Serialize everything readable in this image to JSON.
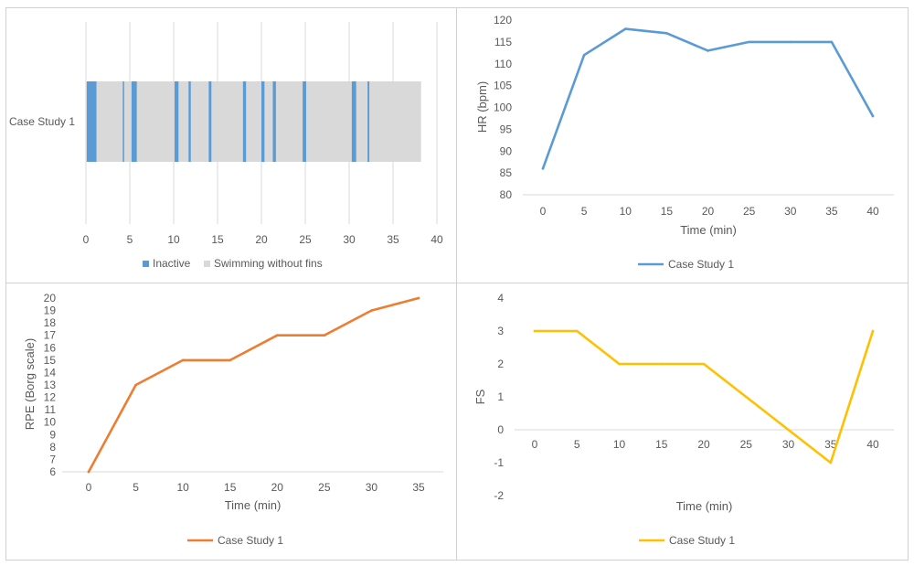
{
  "colors": {
    "inactive": "#5b9bd5",
    "swimming": "#d9d9d9",
    "hr_line": "#5b9bd5",
    "rpe_line": "#ed7d31",
    "fs_line": "#ffc000",
    "grid": "#d9d9d9",
    "border": "#d0d0d0",
    "text": "#595959"
  },
  "chart_data": [
    {
      "type": "bar",
      "subtype": "stacked-horizontal-timeline",
      "categories": [
        "Case Study 1"
      ],
      "xlim": [
        0,
        40
      ],
      "xticks": [
        "0",
        "5",
        "10",
        "15",
        "20",
        "25",
        "30",
        "35",
        "40"
      ],
      "end": 38.2,
      "inactive_segments": [
        [
          0.1,
          1.2
        ],
        [
          4.2,
          4.35
        ],
        [
          5.2,
          5.8
        ],
        [
          10.1,
          10.55
        ],
        [
          11.7,
          11.95
        ],
        [
          14.0,
          14.3
        ],
        [
          17.9,
          18.25
        ],
        [
          20.0,
          20.35
        ],
        [
          21.3,
          21.65
        ],
        [
          24.7,
          25.1
        ],
        [
          30.3,
          30.8
        ],
        [
          32.1,
          32.3
        ]
      ],
      "legend": [
        "Inactive",
        "Swimming without fins"
      ],
      "legend_position": "bottom",
      "grid": "vertical"
    },
    {
      "type": "line",
      "x": [
        0,
        5,
        10,
        15,
        20,
        25,
        30,
        35,
        40
      ],
      "values": [
        86,
        112,
        118,
        117,
        113,
        115,
        115,
        115,
        98
      ],
      "series_name": "Case Study 1",
      "xlabel": "Time (min)",
      "ylabel": "HR (bpm)",
      "ylim": [
        80,
        120
      ],
      "yticks": [
        "80",
        "85",
        "90",
        "95",
        "100",
        "105",
        "110",
        "115",
        "120"
      ],
      "xticks": [
        "0",
        "5",
        "10",
        "15",
        "20",
        "25",
        "30",
        "35",
        "40"
      ],
      "legend_position": "bottom",
      "grid": false
    },
    {
      "type": "line",
      "x": [
        0,
        5,
        10,
        15,
        20,
        25,
        30,
        35
      ],
      "values": [
        6,
        13,
        15,
        15,
        17,
        17,
        19,
        20
      ],
      "series_name": "Case Study 1",
      "xlabel": "Time (min)",
      "ylabel": "RPE (Borg scale)",
      "ylim": [
        6,
        20
      ],
      "yticks": [
        "6",
        "7",
        "8",
        "9",
        "10",
        "11",
        "12",
        "13",
        "14",
        "15",
        "16",
        "17",
        "18",
        "19",
        "20"
      ],
      "xticks": [
        "0",
        "5",
        "10",
        "15",
        "20",
        "25",
        "30",
        "35"
      ],
      "legend_position": "bottom",
      "grid": false
    },
    {
      "type": "line",
      "x": [
        0,
        5,
        10,
        15,
        20,
        25,
        30,
        35,
        40
      ],
      "values": [
        3,
        3,
        2,
        2,
        2,
        1,
        0,
        -1,
        3
      ],
      "series_name": "Case Study 1",
      "xlabel": "Time (min)",
      "ylabel": "FS",
      "ylim": [
        -2,
        4
      ],
      "yticks": [
        "-2",
        "-1",
        "0",
        "1",
        "2",
        "3",
        "4"
      ],
      "xticks": [
        "0",
        "5",
        "10",
        "15",
        "20",
        "25",
        "30",
        "35",
        "40"
      ],
      "legend_position": "bottom",
      "grid": false
    }
  ]
}
